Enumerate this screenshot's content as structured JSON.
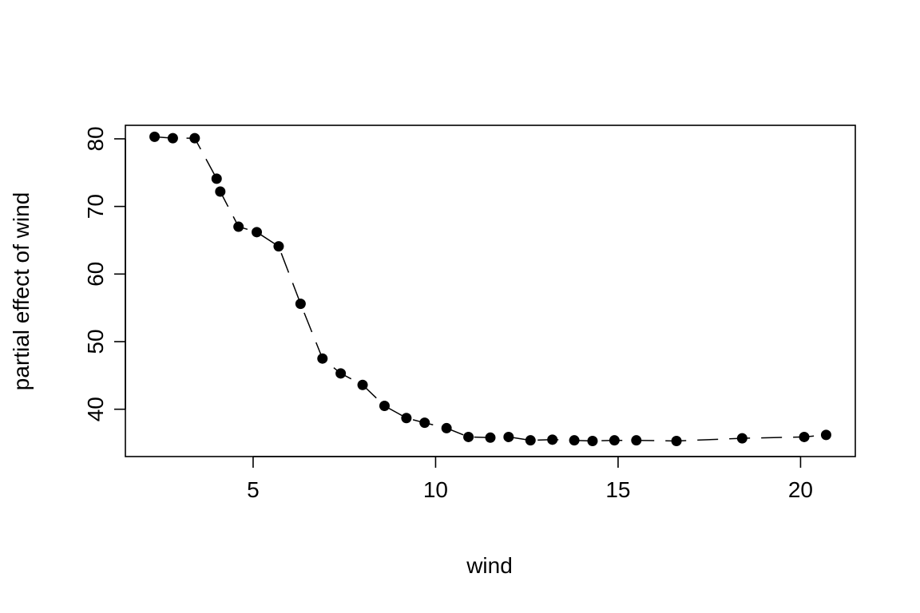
{
  "chart_data": {
    "type": "scatter",
    "xlabel": "wind",
    "ylabel": "partial effect of wind",
    "xlim": [
      1.5,
      21.5
    ],
    "ylim": [
      33,
      82
    ],
    "xticks": [
      5,
      10,
      15,
      20
    ],
    "yticks": [
      40,
      50,
      60,
      70,
      80
    ],
    "grid": false,
    "series": [
      {
        "style": "points-with-dashed-line",
        "color": "#000000",
        "x": [
          2.3,
          2.8,
          3.4,
          4.0,
          4.1,
          4.6,
          5.1,
          5.7,
          6.3,
          6.9,
          7.4,
          8.0,
          8.6,
          9.2,
          9.7,
          10.3,
          10.9,
          11.5,
          12.0,
          12.6,
          13.2,
          13.8,
          14.3,
          14.9,
          15.5,
          16.6,
          18.4,
          20.1,
          20.7
        ],
        "y": [
          80.3,
          80.1,
          80.1,
          74.1,
          72.2,
          67.0,
          66.2,
          64.1,
          55.6,
          47.5,
          45.3,
          43.6,
          40.5,
          38.7,
          38.0,
          37.2,
          35.9,
          35.8,
          35.9,
          35.4,
          35.5,
          35.4,
          35.3,
          35.4,
          35.4,
          35.3,
          35.7,
          35.9,
          36.2
        ]
      }
    ]
  }
}
